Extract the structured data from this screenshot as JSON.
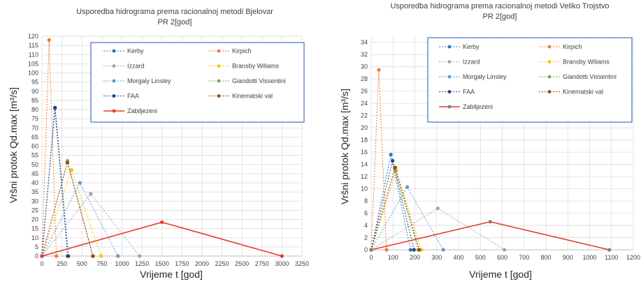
{
  "chart_data": [
    {
      "type": "line",
      "title": "Usporedba hidrograma prema racionalnoj metodi Bjelovar",
      "subtitle": "PR 2[god]",
      "xlabel": "Vrijeme t [god]",
      "ylabel": "Vršni protok Qd.max [m³/s]",
      "xlim": [
        0,
        3250
      ],
      "ylim": [
        0,
        120
      ],
      "xticks": [
        "0",
        "250",
        "500",
        "750",
        "1000",
        "1250",
        "1500",
        "1750",
        "2000",
        "2250",
        "2500",
        "2750",
        "3000",
        "3250"
      ],
      "yticks": [
        "0",
        "5",
        "10",
        "15",
        "20",
        "25",
        "30",
        "35",
        "40",
        "45",
        "50",
        "55",
        "60",
        "65",
        "70",
        "75",
        "80",
        "85",
        "90",
        "95",
        "100",
        "105",
        "110",
        "115",
        "120"
      ],
      "grid": true,
      "legend_position": "top-right",
      "series": [
        {
          "name": "Kerby",
          "color": "#2e75b6",
          "dash": "dashed",
          "x": [
            0,
            160,
            320
          ],
          "y": [
            0,
            81,
            0
          ]
        },
        {
          "name": "Kirpich",
          "color": "#ed7d31",
          "dash": "dashed",
          "x": [
            0,
            90,
            180
          ],
          "y": [
            0,
            118,
            0
          ]
        },
        {
          "name": "Izzard",
          "color": "#a5a5a5",
          "dash": "dashed",
          "x": [
            0,
            610,
            1220
          ],
          "y": [
            0,
            34,
            0
          ]
        },
        {
          "name": "Bransby Wiliams",
          "color": "#ffc000",
          "dash": "dashed",
          "x": [
            0,
            370,
            740
          ],
          "y": [
            0,
            47,
            0
          ]
        },
        {
          "name": "Morgaly Linsley",
          "color": "#5b9bd5",
          "dash": "dashed",
          "x": [
            0,
            475,
            950
          ],
          "y": [
            0,
            40,
            0
          ]
        },
        {
          "name": "Giandotti Vissentini",
          "color": "#70ad47",
          "dash": "dashed",
          "x": [
            0,
            320,
            640
          ],
          "y": [
            0,
            52,
            0
          ]
        },
        {
          "name": "FAA",
          "color": "#264478",
          "dash": "dashed",
          "x": [
            0,
            165,
            330
          ],
          "y": [
            0,
            81,
            0
          ]
        },
        {
          "name": "Kinematski val",
          "color": "#9e480e",
          "dash": "dashed",
          "x": [
            0,
            318,
            636
          ],
          "y": [
            0,
            51,
            0
          ]
        },
        {
          "name": "Zabiljezeni",
          "color": "#e53b2c",
          "dash": "solid",
          "x": [
            0,
            1500,
            3000
          ],
          "y": [
            0,
            18.5,
            0
          ]
        }
      ]
    },
    {
      "type": "line",
      "title": "Usporedba hidrograma prema racionalnoj metodi Veliko Trojstvo",
      "subtitle": "PR 2[god]",
      "xlabel": "Vrijeme t [god]",
      "ylabel": "Vršni protok Qd.max [m³/s]",
      "xlim": [
        0,
        1200
      ],
      "ylim": [
        0,
        35
      ],
      "xticks": [
        "0",
        "100",
        "200",
        "300",
        "400",
        "500",
        "600",
        "700",
        "800",
        "900",
        "1000",
        "1100",
        "1200"
      ],
      "yticks": [
        "0",
        "2",
        "4",
        "6",
        "8",
        "10",
        "12",
        "14",
        "16",
        "18",
        "20",
        "22",
        "24",
        "26",
        "28",
        "30",
        "32",
        "34"
      ],
      "grid": true,
      "legend_position": "top-right",
      "series": [
        {
          "name": "Kerby",
          "color": "#2e75b6",
          "dash": "dashed",
          "x": [
            0,
            90,
            180
          ],
          "y": [
            0,
            15.6,
            0
          ]
        },
        {
          "name": "Kirpich",
          "color": "#ed7d31",
          "dash": "dashed",
          "x": [
            0,
            35,
            70
          ],
          "y": [
            0,
            29.5,
            0
          ]
        },
        {
          "name": "Izzard",
          "color": "#a5a5a5",
          "dash": "dashed",
          "x": [
            0,
            305,
            610
          ],
          "y": [
            0,
            6.8,
            0
          ]
        },
        {
          "name": "Bransby Wiliams",
          "color": "#ffc000",
          "dash": "dashed",
          "x": [
            0,
            115,
            230
          ],
          "y": [
            0,
            13,
            0
          ]
        },
        {
          "name": "Morgaly Linsley",
          "color": "#5b9bd5",
          "dash": "dashed",
          "x": [
            0,
            165,
            330
          ],
          "y": [
            0,
            10.3,
            0
          ]
        },
        {
          "name": "Giandotti Vissentini",
          "color": "#70ad47",
          "dash": "dashed",
          "x": [
            0,
            108,
            216
          ],
          "y": [
            0,
            13.3,
            0
          ]
        },
        {
          "name": "FAA",
          "color": "#264478",
          "dash": "dashed",
          "x": [
            0,
            98,
            196
          ],
          "y": [
            0,
            14.6,
            0
          ]
        },
        {
          "name": "Kinematski val",
          "color": "#9e480e",
          "dash": "dashed",
          "x": [
            0,
            110,
            220
          ],
          "y": [
            0,
            13.5,
            0
          ]
        },
        {
          "name": "Zabiljezeni",
          "color": "#7f7f7f",
          "dash": "solid",
          "line_color": "#e53b2c",
          "x": [
            0,
            545,
            1090
          ],
          "y": [
            0,
            4.6,
            0
          ]
        }
      ]
    }
  ]
}
